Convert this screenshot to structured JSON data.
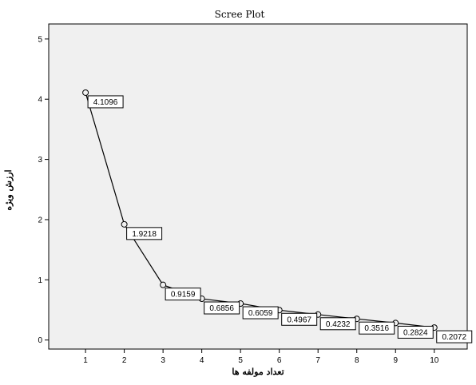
{
  "chart_data": {
    "type": "line",
    "title": "Scree Plot",
    "xlabel": "تعداد مولفه ها",
    "ylabel": "ارزش ویژه",
    "x": [
      1,
      2,
      3,
      4,
      5,
      6,
      7,
      8,
      9,
      10
    ],
    "values": [
      4.1096,
      1.9218,
      0.9159,
      0.6856,
      0.6059,
      0.4967,
      0.4232,
      0.3516,
      0.2824,
      0.2072
    ],
    "data_labels": [
      "4.1096",
      "1.9218",
      "0.9159",
      "0.6856",
      "0.6059",
      "0.4967",
      "0.4232",
      "0.3516",
      "0.2824",
      "0.2072"
    ],
    "x_ticks": [
      "1",
      "2",
      "3",
      "4",
      "5",
      "6",
      "7",
      "8",
      "9",
      "10"
    ],
    "y_ticks": [
      "0",
      "1",
      "2",
      "3",
      "4",
      "5"
    ],
    "xlim": [
      0.05,
      10.85
    ],
    "ylim": [
      -0.15,
      5.25
    ],
    "grid": false,
    "legend": "none",
    "colors": {
      "plot_background": "#f0f0f0",
      "line": "#000000",
      "marker_fill": "#f0f0f0",
      "frame": "#000000",
      "label_box": "#ffffff"
    }
  }
}
